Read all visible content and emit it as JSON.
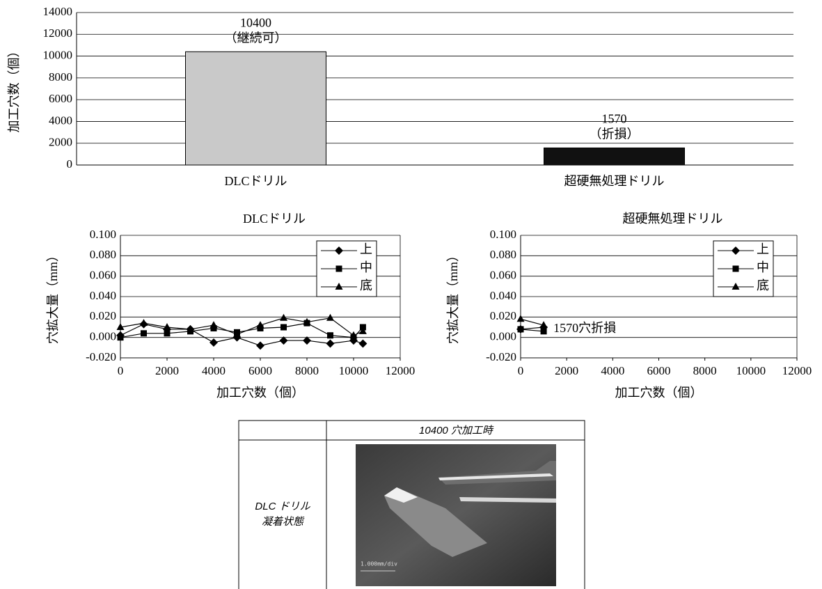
{
  "chart_data": [
    {
      "type": "bar",
      "y_label": "加工穴数（個）",
      "categories": [
        "DLCドリル",
        "超硬無処理ドリル"
      ],
      "values": [
        10400,
        1570
      ],
      "annotations": [
        "（継続可）",
        "（折損）"
      ],
      "colors": [
        "#c9c9c9",
        "#111111"
      ],
      "ylim": [
        0,
        14000
      ],
      "yticks": [
        0,
        2000,
        4000,
        6000,
        8000,
        10000,
        12000,
        14000
      ],
      "grid": true
    },
    {
      "type": "line",
      "title": "DLCドリル",
      "x_label": "加工穴数（個）",
      "y_label": "穴拡大量（mm）",
      "x": [
        0,
        1000,
        2000,
        3000,
        4000,
        5000,
        6000,
        7000,
        8000,
        9000,
        10000,
        10400
      ],
      "series": [
        {
          "name": "上",
          "color": "#000000",
          "marker": "diamond",
          "values": [
            0.002,
            0.013,
            0.008,
            0.008,
            -0.005,
            0.0,
            -0.008,
            -0.003,
            -0.003,
            -0.006,
            -0.003,
            -0.006
          ]
        },
        {
          "name": "中",
          "color": "#000000",
          "marker": "square",
          "values": [
            0.0,
            0.004,
            0.004,
            0.006,
            0.009,
            0.005,
            0.009,
            0.01,
            0.014,
            0.002,
            0.0,
            0.01
          ]
        },
        {
          "name": "底",
          "color": "#000000",
          "marker": "triangle",
          "values": [
            0.01,
            0.014,
            0.01,
            0.008,
            0.012,
            0.003,
            0.012,
            0.019,
            0.015,
            0.019,
            0.002,
            0.006
          ]
        }
      ],
      "xlim": [
        0,
        12000
      ],
      "xticks": [
        0,
        2000,
        4000,
        6000,
        8000,
        10000,
        12000
      ],
      "ylim": [
        -0.02,
        0.1
      ],
      "yticks": [
        {
          "value": -0.02,
          "label": "-0.020"
        },
        {
          "value": 0,
          "label": "0.000"
        },
        {
          "value": 0.02,
          "label": "0.020"
        },
        {
          "value": 0.04,
          "label": "0.040"
        },
        {
          "value": 0.06,
          "label": "0.060"
        },
        {
          "value": 0.08,
          "label": "0.080"
        },
        {
          "value": 0.1,
          "label": "0.100"
        }
      ],
      "grid": true,
      "legend": "top-right"
    },
    {
      "type": "line",
      "title": "超硬無処理ドリル",
      "x_label": "加工穴数（個）",
      "y_label": "穴拡大量（mm）",
      "annotation": "1570穴折損",
      "x": [
        0,
        1000
      ],
      "series": [
        {
          "name": "上",
          "color": "#000000",
          "marker": "diamond",
          "values": [
            0.008,
            0.01
          ]
        },
        {
          "name": "中",
          "color": "#000000",
          "marker": "square",
          "values": [
            0.008,
            0.006
          ]
        },
        {
          "name": "底",
          "color": "#000000",
          "marker": "triangle",
          "values": [
            0.018,
            0.012
          ]
        }
      ],
      "xlim": [
        0,
        12000
      ],
      "xticks": [
        0,
        2000,
        4000,
        6000,
        8000,
        10000,
        12000
      ],
      "ylim": [
        -0.02,
        0.1
      ],
      "yticks": [
        {
          "value": -0.02,
          "label": "-0.020"
        },
        {
          "value": 0,
          "label": "0.000"
        },
        {
          "value": 0.02,
          "label": "0.020"
        },
        {
          "value": 0.04,
          "label": "0.040"
        },
        {
          "value": 0.06,
          "label": "0.060"
        },
        {
          "value": 0.08,
          "label": "0.080"
        },
        {
          "value": 0.1,
          "label": "0.100"
        }
      ],
      "grid": true,
      "legend": "top-right"
    }
  ],
  "table": {
    "header": "10400 穴加工時",
    "row_label": [
      "DLC ドリル",
      "凝着状態"
    ],
    "photo_scale": "1.000mm/div"
  }
}
